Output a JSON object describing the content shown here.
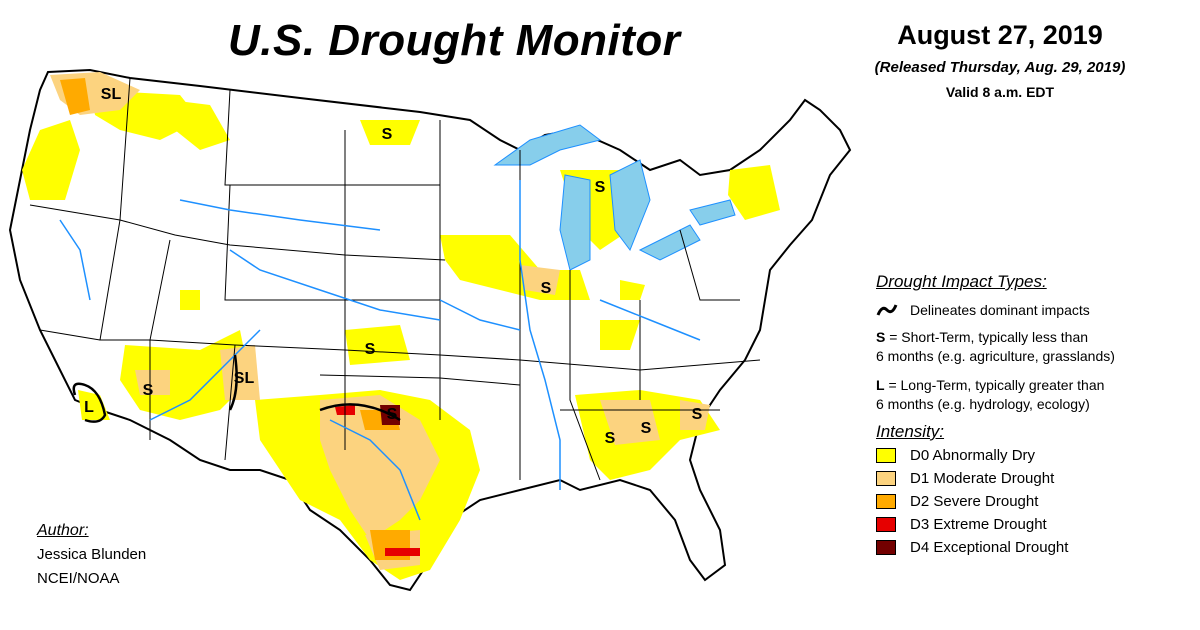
{
  "title": "U.S. Drought Monitor",
  "date": "August 27, 2019",
  "released": "(Released Thursday, Aug. 29, 2019)",
  "valid": "Valid 8 a.m. EDT",
  "impact_types": {
    "heading": "Drought Impact Types:",
    "delineates": "Delineates dominant impacts",
    "short_letter": "S",
    "short_text": "= Short-Term, typically less than",
    "short_text2": "6 months (e.g. agriculture, grasslands)",
    "long_letter": "L",
    "long_text": "= Long-Term, typically greater than",
    "long_text2": "6 months (e.g. hydrology, ecology)"
  },
  "intensity": {
    "heading": "Intensity:",
    "levels": [
      {
        "label": "D0 Abnormally Dry",
        "color": "#ffff00"
      },
      {
        "label": "D1 Moderate Drought",
        "color": "#fcd37f"
      },
      {
        "label": "D2 Severe Drought",
        "color": "#ffaa00"
      },
      {
        "label": "D3 Extreme Drought",
        "color": "#e60000"
      },
      {
        "label": "D4 Exceptional Drought",
        "color": "#730000"
      }
    ]
  },
  "author": {
    "heading": "Author:",
    "name": "Jessica Blunden",
    "org": "NCEI/NOAA"
  },
  "map_labels": [
    "SL",
    "S",
    "S",
    "S",
    "S",
    "SL",
    "S",
    "L",
    "S",
    "S",
    "S",
    "S"
  ],
  "colors": {
    "water": "#87ceeb",
    "river": "#1e90ff",
    "border": "#000000",
    "land": "#ffffff"
  }
}
